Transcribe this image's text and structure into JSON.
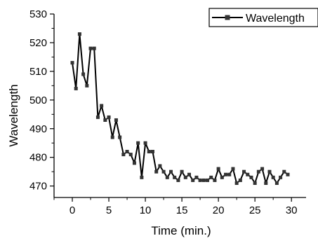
{
  "chart_data": {
    "type": "line",
    "title": "",
    "xlabel": "Time (min.)",
    "ylabel": "Wavelength",
    "xlim": [
      -2.5,
      32
    ],
    "ylim": [
      466,
      530
    ],
    "xticks": [
      0,
      5,
      10,
      15,
      20,
      25,
      30
    ],
    "yticks": [
      470,
      480,
      490,
      500,
      510,
      520,
      530
    ],
    "grid": false,
    "legend_position": "top-right",
    "series": [
      {
        "name": "Wavelength",
        "color": "#000000",
        "marker": "square",
        "x": [
          0,
          0.5,
          1,
          1.5,
          2,
          2.5,
          3,
          3.5,
          4,
          4.5,
          5,
          5.5,
          6,
          6.5,
          7,
          7.5,
          8,
          8.5,
          9,
          9.5,
          10,
          10.5,
          11,
          11.5,
          12,
          12.5,
          13,
          13.5,
          14,
          14.5,
          15,
          15.5,
          16,
          16.5,
          17,
          17.5,
          18,
          18.5,
          19,
          19.5,
          20,
          20.5,
          21,
          21.5,
          22,
          22.5,
          23,
          23.5,
          24,
          24.5,
          25,
          25.5,
          26,
          26.5,
          27,
          27.5,
          28,
          28.5,
          29,
          29.5
        ],
        "y": [
          513,
          504,
          523,
          509,
          505,
          518,
          518,
          494,
          498,
          493,
          494,
          487,
          493,
          487,
          481,
          482,
          481,
          478,
          485,
          473,
          485,
          482,
          482,
          475,
          477,
          475,
          473,
          475,
          473,
          472,
          475,
          473,
          474,
          472,
          473,
          472,
          472,
          472,
          473,
          472,
          476,
          473,
          474,
          474,
          476,
          471,
          472,
          475,
          474,
          473,
          471,
          475,
          476,
          471,
          475,
          473,
          471,
          473,
          475,
          474
        ]
      }
    ]
  }
}
